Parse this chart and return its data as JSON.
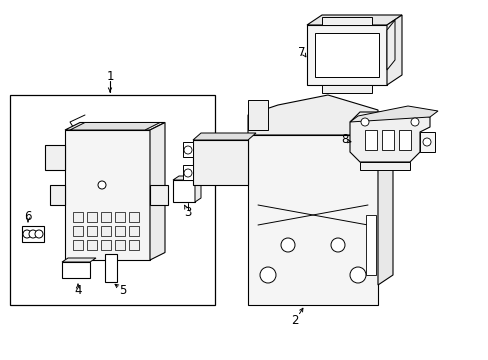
{
  "background_color": "#ffffff",
  "line_color": "#000000",
  "figsize": [
    4.89,
    3.6
  ],
  "dpi": 100,
  "lw": 0.8,
  "gray": "#888888",
  "light_gray": "#cccccc"
}
